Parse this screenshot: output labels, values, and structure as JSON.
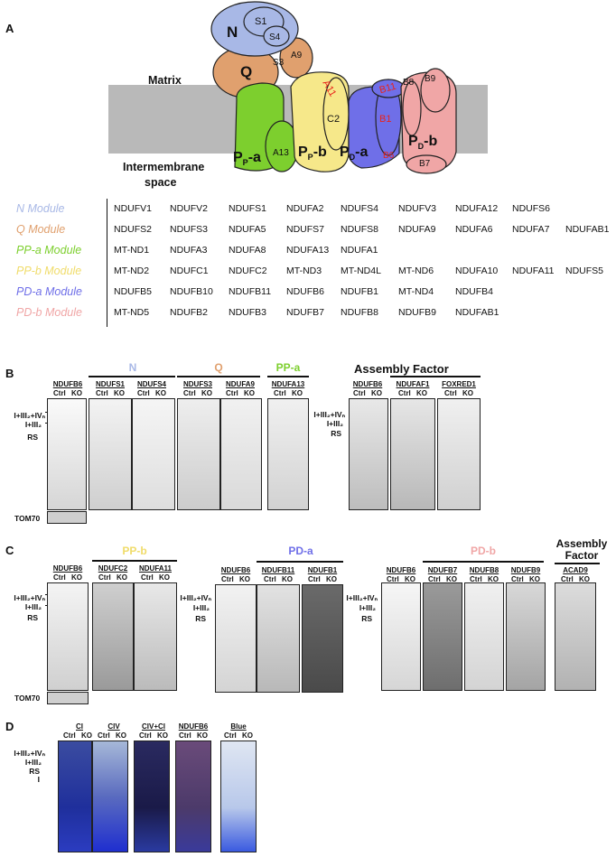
{
  "panels": {
    "a": "A",
    "b": "B",
    "c": "C",
    "d": "D"
  },
  "diagram": {
    "matrix_label": "Matrix",
    "intermembrane_label_1": "Intermembrane",
    "intermembrane_label_2": "space",
    "subunits": {
      "N": "N",
      "S1": "S1",
      "S4": "S4",
      "Q": "Q",
      "S3": "S3",
      "A9": "A9",
      "A11": "A11",
      "C2": "C2",
      "A13": "A13",
      "B11": "B11",
      "B1": "B1",
      "B6": "B6",
      "B8": "B8",
      "B9": "B9",
      "B7": "B7"
    },
    "pp_a_label": "P<sub>P</sub>-a",
    "pp_b_label": "P<sub>P</sub>-b",
    "pd_a_label": "P<sub>D</sub>-a",
    "pd_b_label": "P<sub>D</sub>-b",
    "colors": {
      "N": "#a8b8e6",
      "Q": "#e0a06e",
      "Pp_a": "#7dcf2e",
      "Pp_b": "#f6e88a",
      "Pd_a": "#6f6fe8",
      "Pd_b": "#f0a6a6",
      "membrane": "#b9b9b9",
      "red_text": "#e8241c"
    }
  },
  "modules": [
    {
      "label": "N Module",
      "color": "#a8b8e6",
      "genes": [
        "NDUFV1",
        "NDUFV2",
        "NDUFS1",
        "NDUFA2",
        "NDUFS4",
        "NDUFV3",
        "NDUFA12",
        "NDUFS6"
      ]
    },
    {
      "label": "Q Module",
      "color": "#e0a06e",
      "genes": [
        "NDUFS2",
        "NDUFS3",
        "NDUFA5",
        "NDUFS7",
        "NDUFS8",
        "NDUFA9",
        "NDUFA6",
        "NDUFA7",
        "NDUFAB1"
      ]
    },
    {
      "label": "PP-a Module",
      "color": "#7dcf2e",
      "genes": [
        "MT-ND1",
        "NDUFA3",
        "NDUFA8",
        "NDUFA13",
        "NDUFA1"
      ]
    },
    {
      "label": "PP-b Module",
      "color": "#f0dc6a",
      "genes": [
        "MT-ND2",
        "NDUFC1",
        "NDUFC2",
        "MT-ND3",
        "MT-ND4L",
        "MT-ND6",
        "NDUFA10",
        "NDUFA11",
        "NDUFS5"
      ]
    },
    {
      "label": "PD-a Module",
      "color": "#6f6fe8",
      "genes": [
        "NDUFB5",
        "NDUFB10",
        "NDUFB11",
        "NDUFB6",
        "NDUFB1",
        "MT-ND4",
        "NDUFB4"
      ]
    },
    {
      "label": "PD-b Module",
      "color": "#f0a6a6",
      "genes": [
        "MT-ND5",
        "NDUFB2",
        "NDUFB3",
        "NDUFB7",
        "NDUFB8",
        "NDUFB9",
        "NDUFAB1"
      ]
    }
  ],
  "blot": {
    "band_labels": [
      "I+III₂+IVₙ",
      "I+III₂",
      "RS"
    ],
    "band_labels_d": [
      "I+III₂+IVₙ",
      "I+III₂",
      "RS",
      "I"
    ],
    "ctrl_ko": "Ctrl KO",
    "loading_control": "TOM70",
    "assembly_factor": "Assembly Factor",
    "assembly_factor_1": "Assembly",
    "assembly_factor_2": "Factor",
    "b_groups": {
      "N": "N",
      "Q": "Q",
      "Ppa": "PP-a"
    },
    "b_antibodies": [
      "NDUFB6",
      "NDUFS1",
      "NDUFS4",
      "NDUFS3",
      "NDUFA9",
      "NDUFA13",
      "NDUFB6",
      "NDUFAF1",
      "FOXRED1"
    ],
    "c_groups": {
      "Ppb": "PP-b",
      "Pda": "PD-a",
      "Pdb": "PD-b"
    },
    "c_antibodies": [
      "NDUFB6",
      "NDUFC2",
      "NDUFA11",
      "NDUFB6",
      "NDUFB11",
      "NDUFB1",
      "NDUFB6",
      "NDUFB7",
      "NDUFB8",
      "NDUFB9",
      "ACAD9"
    ],
    "d_antibodies": [
      "CI",
      "CIV",
      "CIV+CI",
      "NDUFB6",
      "Blue"
    ]
  }
}
